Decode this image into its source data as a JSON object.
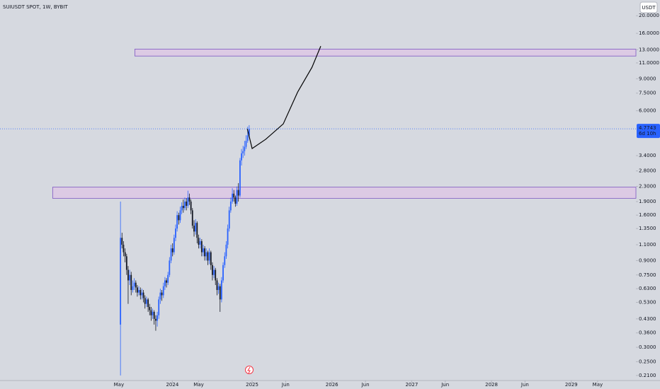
{
  "header": {
    "symbol": "SUIUSDT SPOT, 1W, BYBIT",
    "currency_button": "USDT"
  },
  "chart_data": {
    "type": "candlestick",
    "log_scale": true,
    "grid": false,
    "up_color": "#2962ff",
    "down_color": "#131722",
    "xlim": [
      2021.84,
      2029.81
    ],
    "ylim": [
      0.197,
      24.4
    ],
    "xticks": [
      {
        "value": 2023.33,
        "label": "May"
      },
      {
        "value": 2024,
        "label": "2024"
      },
      {
        "value": 2024.33,
        "label": "May"
      },
      {
        "value": 2025,
        "label": "2025"
      },
      {
        "value": 2025.42,
        "label": "Jun"
      },
      {
        "value": 2026,
        "label": "2026"
      },
      {
        "value": 2026.42,
        "label": "Jun"
      },
      {
        "value": 2027,
        "label": "2027"
      },
      {
        "value": 2027.42,
        "label": "Jun"
      },
      {
        "value": 2028,
        "label": "2028"
      },
      {
        "value": 2028.42,
        "label": "Jun"
      },
      {
        "value": 2029,
        "label": "2029"
      },
      {
        "value": 2029.33,
        "label": "May"
      }
    ],
    "yticks": [
      {
        "value": 20,
        "label": "20.0000"
      },
      {
        "value": 16,
        "label": "16.0000"
      },
      {
        "value": 13,
        "label": "13.0000"
      },
      {
        "value": 11,
        "label": "11.0000"
      },
      {
        "value": 9,
        "label": "9.0000"
      },
      {
        "value": 7.5,
        "label": "7.5000"
      },
      {
        "value": 6,
        "label": "6.0000"
      },
      {
        "value": 3.4,
        "label": "3.4000"
      },
      {
        "value": 2.8,
        "label": "2.8000"
      },
      {
        "value": 2.3,
        "label": "2.3000"
      },
      {
        "value": 1.9,
        "label": "1.9000"
      },
      {
        "value": 1.6,
        "label": "1.6000"
      },
      {
        "value": 1.35,
        "label": "1.3500"
      },
      {
        "value": 1.1,
        "label": "1.1000"
      },
      {
        "value": 0.9,
        "label": "0.9000"
      },
      {
        "value": 0.75,
        "label": "0.7500"
      },
      {
        "value": 0.63,
        "label": "0.6300"
      },
      {
        "value": 0.53,
        "label": "0.5300"
      },
      {
        "value": 0.43,
        "label": "0.4300"
      },
      {
        "value": 0.36,
        "label": "0.3600"
      },
      {
        "value": 0.3,
        "label": "0.3000"
      },
      {
        "value": 0.25,
        "label": "0.2500"
      },
      {
        "value": 0.21,
        "label": "0.2100"
      }
    ],
    "x": [
      2023.35,
      2023.369,
      2023.388,
      2023.408,
      2023.427,
      2023.446,
      2023.465,
      2023.484,
      2023.504,
      2023.523,
      2023.542,
      2023.561,
      2023.58,
      2023.6,
      2023.619,
      2023.638,
      2023.657,
      2023.676,
      2023.696,
      2023.715,
      2023.734,
      2023.753,
      2023.772,
      2023.792,
      2023.811,
      2023.83,
      2023.849,
      2023.868,
      2023.888,
      2023.907,
      2023.926,
      2023.945,
      2023.964,
      2023.984,
      2024.003,
      2024.022,
      2024.041,
      2024.06,
      2024.08,
      2024.099,
      2024.118,
      2024.137,
      2024.156,
      2024.176,
      2024.195,
      2024.214,
      2024.233,
      2024.252,
      2024.272,
      2024.291,
      2024.31,
      2024.329,
      2024.348,
      2024.368,
      2024.387,
      2024.406,
      2024.425,
      2024.444,
      2024.464,
      2024.483,
      2024.502,
      2024.521,
      2024.54,
      2024.56,
      2024.579,
      2024.598,
      2024.617,
      2024.636,
      2024.656,
      2024.675,
      2024.694,
      2024.713,
      2024.732,
      2024.752,
      2024.771,
      2024.79,
      2024.809,
      2024.828,
      2024.848,
      2024.867,
      2024.886,
      2024.905,
      2024.924,
      2024.944,
      2024.963
    ],
    "open": [
      0.4,
      1.2,
      1.1,
      1.0,
      0.95,
      0.8,
      0.7,
      0.75,
      0.62,
      0.65,
      0.68,
      0.64,
      0.6,
      0.62,
      0.58,
      0.6,
      0.56,
      0.52,
      0.55,
      0.5,
      0.48,
      0.45,
      0.47,
      0.43,
      0.42,
      0.45,
      0.55,
      0.6,
      0.58,
      0.65,
      0.7,
      0.68,
      0.75,
      0.9,
      1.05,
      1.0,
      1.2,
      1.35,
      1.6,
      1.5,
      1.7,
      1.8,
      1.75,
      1.9,
      1.8,
      2.0,
      1.9,
      1.7,
      1.4,
      1.3,
      1.45,
      1.2,
      1.1,
      1.15,
      1.0,
      1.05,
      0.95,
      1.0,
      0.9,
      1.0,
      0.85,
      0.75,
      0.8,
      0.7,
      0.62,
      0.65,
      0.55,
      0.7,
      0.85,
      0.95,
      1.1,
      1.35,
      1.7,
      1.9,
      2.1,
      2.0,
      1.85,
      2.2,
      2.05,
      3.2,
      3.5,
      3.6,
      3.8,
      4.1,
      4.4
    ],
    "high": [
      1.9,
      1.28,
      1.15,
      1.05,
      0.98,
      0.84,
      0.8,
      0.78,
      0.7,
      0.72,
      0.7,
      0.66,
      0.65,
      0.64,
      0.63,
      0.62,
      0.58,
      0.57,
      0.56,
      0.52,
      0.5,
      0.49,
      0.48,
      0.45,
      0.47,
      0.57,
      0.63,
      0.62,
      0.68,
      0.73,
      0.72,
      0.78,
      0.94,
      1.1,
      1.12,
      1.25,
      1.42,
      1.68,
      1.65,
      1.78,
      1.88,
      1.95,
      2.0,
      1.98,
      2.18,
      2.1,
      1.95,
      1.75,
      1.5,
      1.52,
      1.48,
      1.25,
      1.2,
      1.18,
      1.1,
      1.08,
      1.05,
      1.02,
      1.05,
      1.02,
      0.88,
      0.84,
      0.82,
      0.72,
      0.68,
      0.67,
      0.73,
      0.88,
      1.0,
      1.15,
      1.42,
      1.78,
      2.0,
      2.25,
      2.2,
      2.05,
      2.3,
      2.4,
      3.3,
      3.7,
      3.85,
      4.1,
      4.4,
      4.9,
      5.0
    ],
    "low": [
      0.21,
      1.05,
      0.95,
      0.88,
      0.75,
      0.52,
      0.66,
      0.58,
      0.6,
      0.62,
      0.6,
      0.57,
      0.58,
      0.55,
      0.55,
      0.53,
      0.49,
      0.5,
      0.47,
      0.45,
      0.42,
      0.43,
      0.4,
      0.37,
      0.39,
      0.43,
      0.52,
      0.54,
      0.56,
      0.62,
      0.64,
      0.66,
      0.73,
      0.87,
      0.95,
      0.97,
      1.15,
      1.3,
      1.42,
      1.45,
      1.62,
      1.65,
      1.7,
      1.7,
      1.75,
      1.82,
      1.62,
      1.35,
      1.22,
      1.25,
      1.12,
      1.05,
      1.05,
      0.95,
      0.95,
      0.9,
      0.9,
      0.85,
      0.86,
      0.8,
      0.7,
      0.72,
      0.66,
      0.58,
      0.59,
      0.47,
      0.53,
      0.68,
      0.82,
      0.92,
      1.05,
      1.3,
      1.65,
      1.85,
      1.9,
      1.78,
      1.8,
      1.9,
      2.0,
      3.0,
      3.3,
      3.4,
      3.7,
      4.0,
      4.3
    ],
    "close": [
      1.2,
      1.1,
      1.0,
      0.95,
      0.8,
      0.7,
      0.75,
      0.62,
      0.65,
      0.68,
      0.64,
      0.6,
      0.62,
      0.58,
      0.6,
      0.56,
      0.52,
      0.55,
      0.5,
      0.48,
      0.45,
      0.47,
      0.43,
      0.42,
      0.45,
      0.55,
      0.6,
      0.58,
      0.65,
      0.7,
      0.68,
      0.75,
      0.9,
      1.05,
      1.0,
      1.2,
      1.35,
      1.6,
      1.5,
      1.7,
      1.8,
      1.75,
      1.9,
      1.8,
      2.0,
      1.9,
      1.7,
      1.4,
      1.3,
      1.45,
      1.2,
      1.1,
      1.15,
      1.0,
      1.05,
      0.95,
      1.0,
      0.9,
      1.0,
      0.85,
      0.75,
      0.8,
      0.7,
      0.62,
      0.65,
      0.55,
      0.7,
      0.85,
      0.95,
      1.1,
      1.35,
      1.7,
      1.9,
      2.1,
      2.0,
      1.85,
      2.2,
      2.05,
      3.2,
      3.5,
      3.6,
      3.8,
      4.1,
      4.4,
      4.77
    ],
    "zones": [
      {
        "x_start": 2022.5,
        "top": 2.28,
        "bottom": 1.98,
        "color": "#7e57c2"
      },
      {
        "x_start": 2023.53,
        "top": 13.1,
        "bottom": 12.0,
        "color": "#7e57c2"
      }
    ],
    "projection": {
      "color": "#000000",
      "x": [
        2024.94,
        2025.0,
        2025.17,
        2025.39,
        2025.57,
        2025.75,
        2025.86
      ],
      "values": [
        4.77,
        3.72,
        4.18,
        5.08,
        7.6,
        10.4,
        13.6
      ]
    },
    "last_price": 4.7743,
    "last_price_color": "#2962ff",
    "countdown": "6d 10h"
  }
}
